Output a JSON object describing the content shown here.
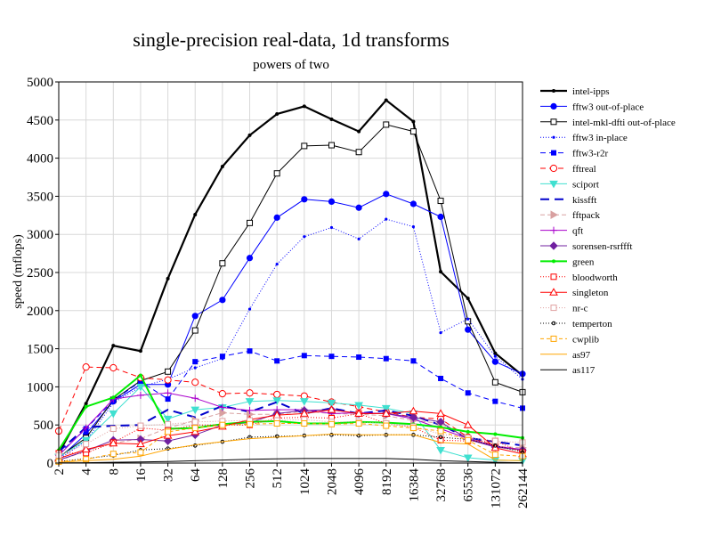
{
  "chart_data": {
    "type": "line",
    "title": "single-precision real-data, 1d transforms",
    "subtitle": "powers of two",
    "xlabel": "",
    "ylabel": "speed (mflops)",
    "ylim": [
      0,
      5000
    ],
    "yticks": [
      0,
      500,
      1000,
      1500,
      2000,
      2500,
      3000,
      3500,
      4000,
      4500,
      5000
    ],
    "x": [
      "2",
      "4",
      "8",
      "16",
      "32",
      "64",
      "128",
      "256",
      "512",
      "1024",
      "2048",
      "4096",
      "8192",
      "16384",
      "32768",
      "65536",
      "131072",
      "262144"
    ],
    "grid": true,
    "legend_position": "right",
    "series": [
      {
        "name": "intel-ipps",
        "color": "#000000",
        "dash": "",
        "width": 2.2,
        "marker": "dot",
        "values": [
          130,
          780,
          1540,
          1470,
          2420,
          3260,
          3890,
          4300,
          4580,
          4680,
          4510,
          4350,
          4760,
          4480,
          2510,
          2160,
          1440,
          1150
        ]
      },
      {
        "name": "fftw3 out-of-place",
        "color": "#0000ff",
        "dash": "",
        "width": 1,
        "marker": "circle-filled",
        "values": [
          60,
          380,
          810,
          1030,
          1030,
          1930,
          2140,
          2690,
          3220,
          3460,
          3430,
          3350,
          3530,
          3400,
          3230,
          1750,
          1330,
          1170
        ]
      },
      {
        "name": "intel-mkl-dfti out-of-place",
        "color": "#000000",
        "dash": "",
        "width": 1,
        "marker": "square-open",
        "values": [
          80,
          330,
          830,
          1080,
          1200,
          1740,
          2620,
          3150,
          3800,
          4160,
          4170,
          4080,
          4440,
          4350,
          3440,
          1860,
          1060,
          930
        ]
      },
      {
        "name": "fftw3 in-place",
        "color": "#0000ff",
        "dash": "1,2",
        "width": 1,
        "marker": "dot-small",
        "values": [
          50,
          290,
          790,
          1000,
          1100,
          1250,
          1370,
          2020,
          2610,
          2970,
          3090,
          2940,
          3200,
          3100,
          1710,
          1890,
          1400,
          1100
        ]
      },
      {
        "name": "fftw3-r2r",
        "color": "#0000ff",
        "dash": "6,4",
        "width": 1,
        "marker": "square-filled",
        "values": [
          120,
          450,
          820,
          1070,
          840,
          1330,
          1400,
          1470,
          1340,
          1410,
          1400,
          1390,
          1370,
          1340,
          1110,
          920,
          810,
          720
        ]
      },
      {
        "name": "fftreal",
        "color": "#ff0000",
        "dash": "6,4",
        "width": 1,
        "marker": "circle-open",
        "values": [
          420,
          1260,
          1250,
          1120,
          1090,
          1060,
          910,
          920,
          900,
          880,
          800,
          740,
          670,
          600,
          580,
          340,
          230,
          160
        ]
      },
      {
        "name": "sciport",
        "color": "#40e0d0",
        "dash": "",
        "width": 1,
        "marker": "triangle-down",
        "values": [
          80,
          300,
          650,
          1000,
          580,
          700,
          730,
          810,
          820,
          810,
          790,
          760,
          720,
          650,
          170,
          70,
          40,
          30
        ]
      },
      {
        "name": "kissfft",
        "color": "#0000cc",
        "dash": "10,6",
        "width": 2,
        "marker": "none",
        "values": [
          150,
          470,
          490,
          500,
          700,
          600,
          750,
          670,
          800,
          650,
          720,
          650,
          690,
          620,
          500,
          330,
          280,
          230
        ]
      },
      {
        "name": "fftpack",
        "color": "#d8a0a0",
        "dash": "5,3",
        "width": 1,
        "marker": "triangle-right",
        "values": [
          30,
          160,
          260,
          320,
          460,
          560,
          660,
          640,
          640,
          680,
          650,
          640,
          620,
          560,
          520,
          330,
          220,
          200
        ]
      },
      {
        "name": "qft",
        "color": "#aa00cc",
        "dash": "",
        "width": 1,
        "marker": "plus",
        "values": [
          100,
          460,
          840,
          890,
          920,
          850,
          730,
          690,
          700,
          700,
          650,
          660,
          650,
          580,
          450,
          320,
          220,
          180
        ]
      },
      {
        "name": "sorensen-rsrffft",
        "color": "#7020a0",
        "dash": "",
        "width": 1,
        "marker": "diamond",
        "values": [
          40,
          160,
          300,
          310,
          290,
          370,
          500,
          530,
          650,
          690,
          700,
          650,
          650,
          600,
          540,
          310,
          210,
          170
        ]
      },
      {
        "name": "green",
        "color": "#00ee00",
        "dash": "",
        "width": 2,
        "marker": "dot",
        "values": [
          170,
          740,
          860,
          1150,
          450,
          460,
          510,
          540,
          550,
          520,
          520,
          540,
          530,
          510,
          470,
          410,
          380,
          330
        ]
      },
      {
        "name": "bloodworth",
        "color": "#ff0000",
        "dash": "1,2",
        "width": 1,
        "marker": "square-open",
        "values": [
          130,
          130,
          270,
          460,
          430,
          500,
          500,
          500,
          590,
          600,
          590,
          650,
          520,
          470,
          300,
          290,
          290,
          140
        ]
      },
      {
        "name": "singleton",
        "color": "#ff0000",
        "dash": "",
        "width": 1,
        "marker": "triangle-up",
        "values": [
          60,
          180,
          260,
          250,
          360,
          410,
          480,
          570,
          630,
          650,
          700,
          650,
          650,
          680,
          650,
          500,
          200,
          120
        ]
      },
      {
        "name": "nr-c",
        "color": "#e0a0a0",
        "dash": "1,2",
        "width": 1,
        "marker": "square-open",
        "values": [
          100,
          250,
          450,
          490,
          510,
          540,
          550,
          560,
          560,
          570,
          540,
          540,
          520,
          480,
          380,
          330,
          290,
          270
        ]
      },
      {
        "name": "temperton",
        "color": "#000000",
        "dash": "1,2",
        "width": 1,
        "marker": "circle-small",
        "values": [
          20,
          60,
          100,
          170,
          190,
          230,
          280,
          340,
          350,
          360,
          370,
          360,
          370,
          370,
          340,
          310,
          230,
          140
        ]
      },
      {
        "name": "cwplib",
        "color": "#ffa500",
        "dash": "4,3",
        "width": 1,
        "marker": "square-open",
        "values": [
          20,
          50,
          120,
          140,
          410,
          460,
          500,
          510,
          520,
          520,
          510,
          520,
          490,
          460,
          420,
          300,
          110,
          90
        ]
      },
      {
        "name": "as97",
        "color": "#ffa500",
        "dash": "",
        "width": 1,
        "marker": "none",
        "values": [
          10,
          30,
          50,
          90,
          180,
          240,
          280,
          320,
          340,
          360,
          380,
          370,
          370,
          370,
          270,
          250,
          40,
          30
        ]
      },
      {
        "name": "as117",
        "color": "#000000",
        "dash": "",
        "width": 1,
        "marker": "none",
        "values": [
          2,
          5,
          10,
          15,
          20,
          30,
          40,
          50,
          55,
          60,
          60,
          60,
          60,
          50,
          30,
          20,
          10,
          5
        ]
      }
    ]
  }
}
